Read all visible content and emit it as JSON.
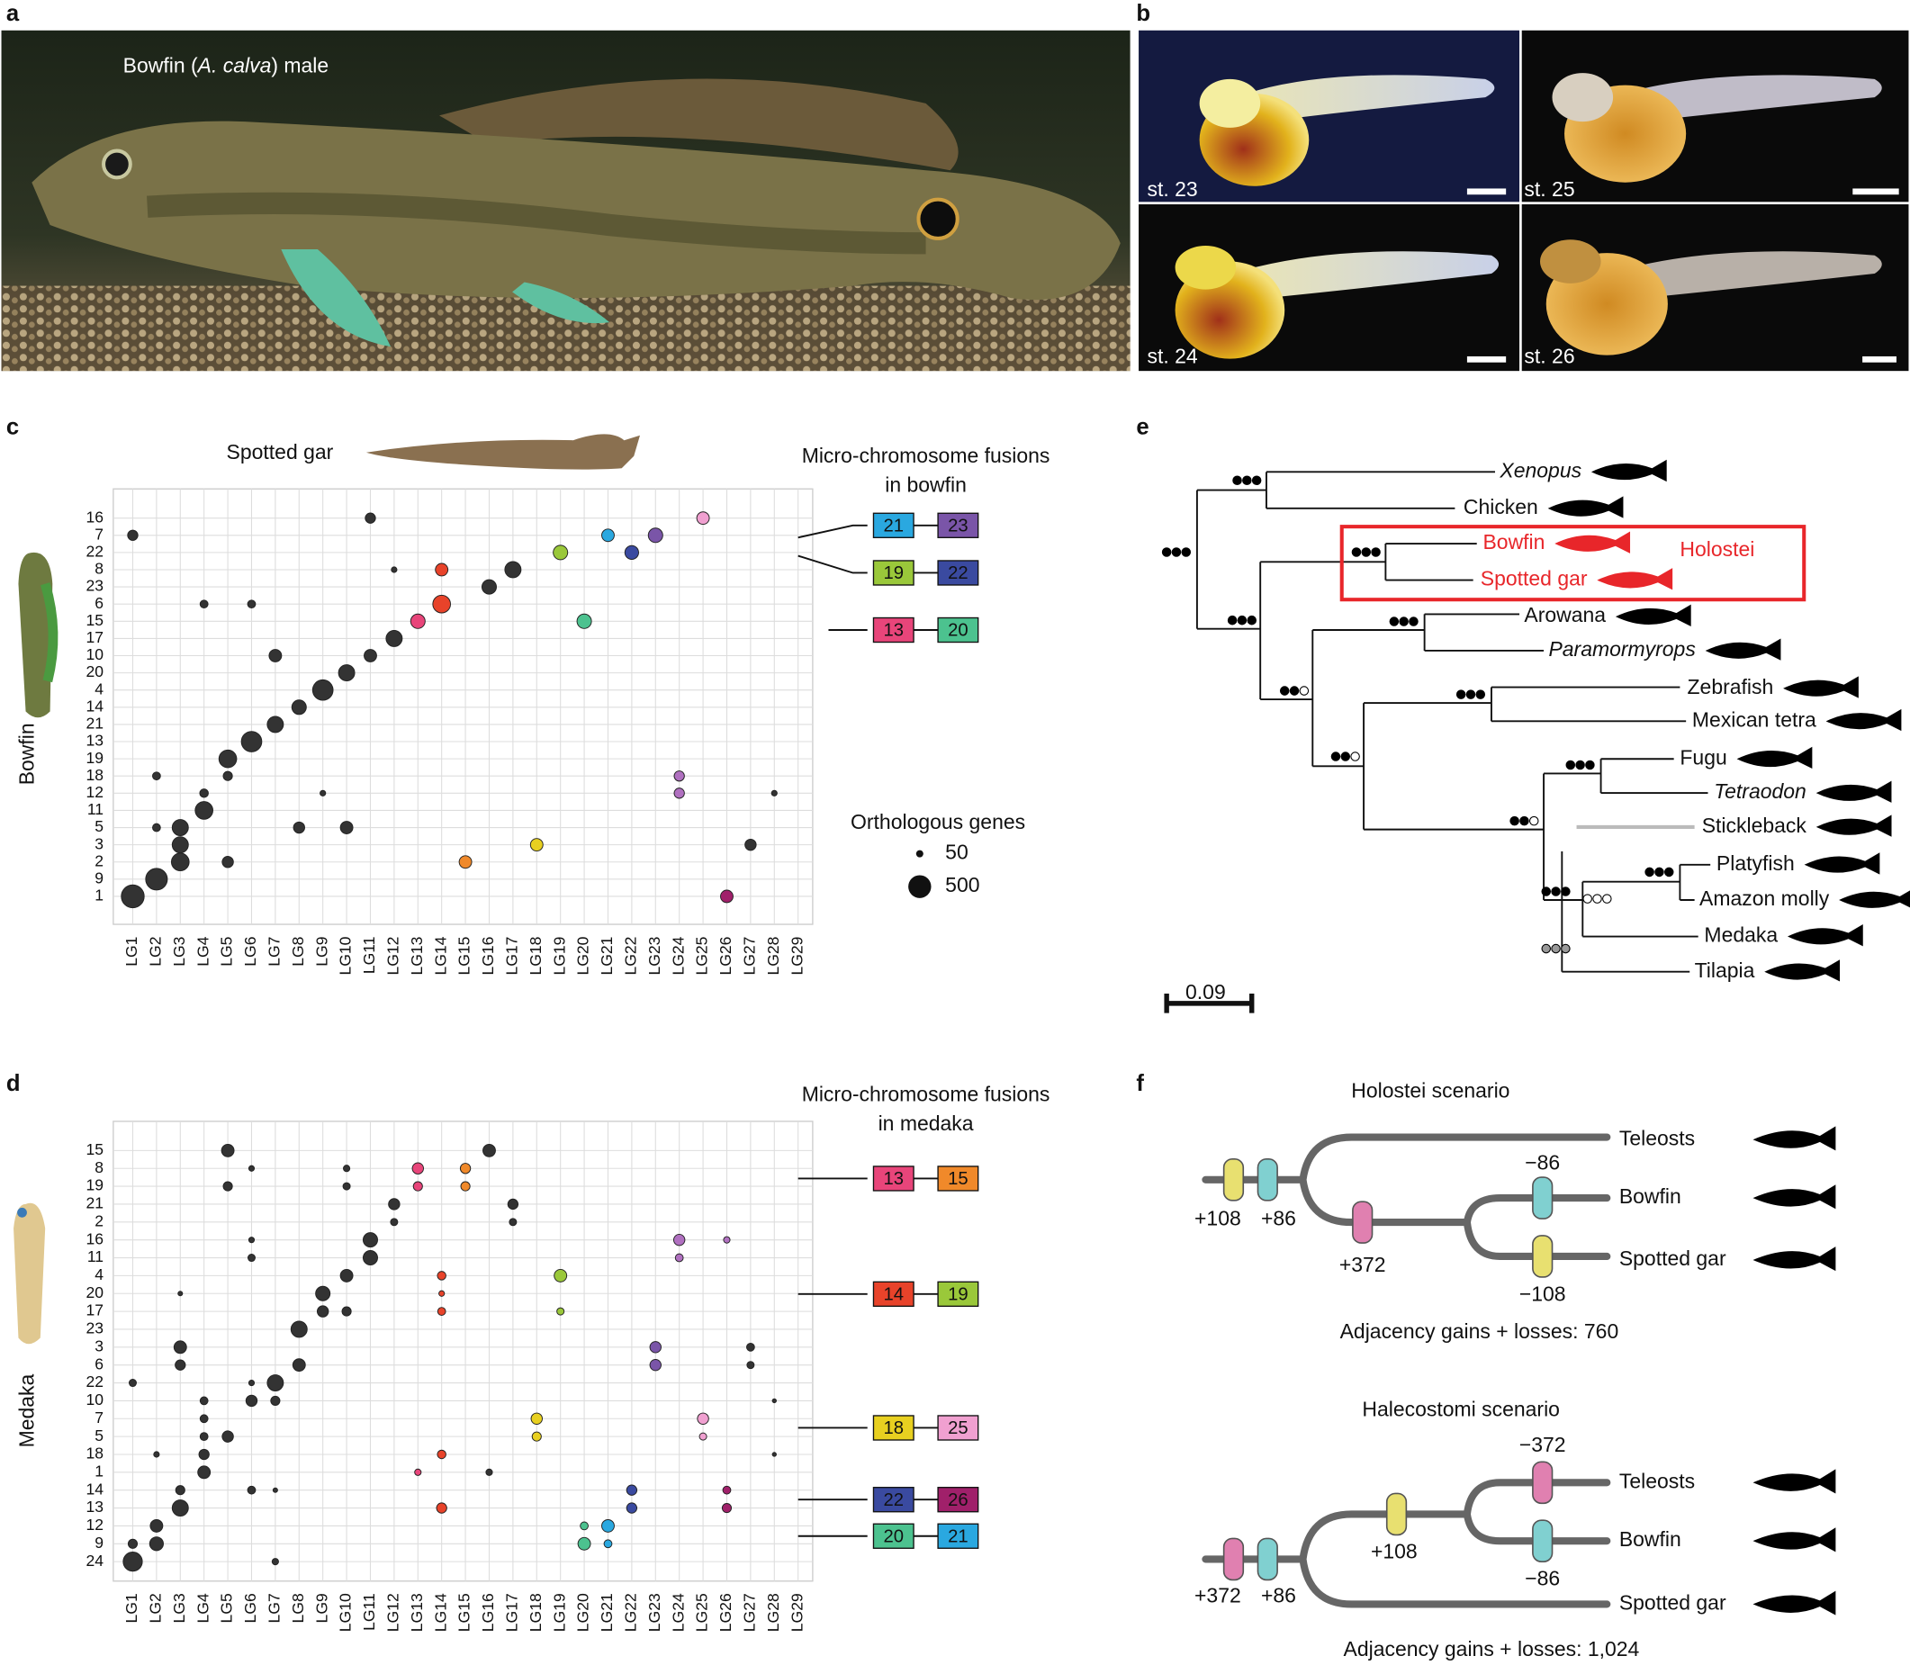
{
  "panel_labels": [
    "a",
    "b",
    "c",
    "d",
    "e",
    "f"
  ],
  "panel_a": {
    "caption": [
      "Bowfin (",
      "A. calva",
      ") male"
    ]
  },
  "panel_b": {
    "stages": [
      "st. 23",
      "st. 25",
      "st. 24",
      "st. 26"
    ]
  },
  "chart_data": [
    {
      "type": "dot_matrix",
      "title": "Spotted gar",
      "y_label": "Bowfin",
      "x_categories": [
        "LG1",
        "LG2",
        "LG3",
        "LG4",
        "LG5",
        "LG6",
        "LG7",
        "LG8",
        "LG9",
        "LG10",
        "LG11",
        "LG12",
        "LG13",
        "LG14",
        "LG15",
        "LG16",
        "LG17",
        "LG18",
        "LG19",
        "LG20",
        "LG21",
        "LG22",
        "LG23",
        "LG24",
        "LG25",
        "LG26",
        "LG27",
        "LG28",
        "LG29"
      ],
      "y_categories": [
        "16",
        "7",
        "22",
        "8",
        "23",
        "6",
        "15",
        "17",
        "10",
        "20",
        "4",
        "14",
        "21",
        "13",
        "19",
        "18",
        "12",
        "11",
        "5",
        "3",
        "2",
        "9",
        "1"
      ],
      "dot_color": "#333333",
      "points": [
        {
          "x": "LG1",
          "y": "7",
          "genes": 100
        },
        {
          "x": "LG1",
          "y": "1",
          "genes": 500
        },
        {
          "x": "LG2",
          "y": "18",
          "genes": 60
        },
        {
          "x": "LG2",
          "y": "5",
          "genes": 60
        },
        {
          "x": "LG2",
          "y": "9",
          "genes": 450
        },
        {
          "x": "LG3",
          "y": "5",
          "genes": 250
        },
        {
          "x": "LG3",
          "y": "3",
          "genes": 250
        },
        {
          "x": "LG3",
          "y": "2",
          "genes": 300
        },
        {
          "x": "LG4",
          "y": "6",
          "genes": 60
        },
        {
          "x": "LG4",
          "y": "12",
          "genes": 70
        },
        {
          "x": "LG4",
          "y": "11",
          "genes": 300
        },
        {
          "x": "LG5",
          "y": "19",
          "genes": 300
        },
        {
          "x": "LG5",
          "y": "18",
          "genes": 80
        },
        {
          "x": "LG5",
          "y": "2",
          "genes": 120
        },
        {
          "x": "LG6",
          "y": "6",
          "genes": 60
        },
        {
          "x": "LG6",
          "y": "13",
          "genes": 400
        },
        {
          "x": "LG7",
          "y": "10",
          "genes": 150
        },
        {
          "x": "LG7",
          "y": "21",
          "genes": 250
        },
        {
          "x": "LG8",
          "y": "14",
          "genes": 200
        },
        {
          "x": "LG8",
          "y": "5",
          "genes": 120
        },
        {
          "x": "LG9",
          "y": "4",
          "genes": 400
        },
        {
          "x": "LG9",
          "y": "12",
          "genes": 30
        },
        {
          "x": "LG10",
          "y": "20",
          "genes": 250
        },
        {
          "x": "LG10",
          "y": "5",
          "genes": 150
        },
        {
          "x": "LG11",
          "y": "16",
          "genes": 100
        },
        {
          "x": "LG11",
          "y": "10",
          "genes": 150
        },
        {
          "x": "LG12",
          "y": "8",
          "genes": 30
        },
        {
          "x": "LG12",
          "y": "17",
          "genes": 250
        },
        {
          "x": "LG13",
          "y": "15",
          "genes": 200,
          "color": "#e8457a"
        },
        {
          "x": "LG14",
          "y": "8",
          "genes": 150,
          "color": "#e8432a"
        },
        {
          "x": "LG14",
          "y": "6",
          "genes": 300,
          "color": "#e8432a"
        },
        {
          "x": "LG15",
          "y": "2",
          "genes": 150,
          "color": "#f0892a"
        },
        {
          "x": "LG16",
          "y": "23",
          "genes": 200
        },
        {
          "x": "LG17",
          "y": "8",
          "genes": 250
        },
        {
          "x": "LG18",
          "y": "3",
          "genes": 150,
          "color": "#e8d020"
        },
        {
          "x": "LG19",
          "y": "22",
          "genes": 200,
          "color": "#9ac83a"
        },
        {
          "x": "LG20",
          "y": "15",
          "genes": 200,
          "color": "#4cc28f"
        },
        {
          "x": "LG21",
          "y": "7",
          "genes": 150,
          "color": "#2aa8e0"
        },
        {
          "x": "LG22",
          "y": "22",
          "genes": 180,
          "color": "#3a4aa0"
        },
        {
          "x": "LG23",
          "y": "7",
          "genes": 200,
          "color": "#7a55a8"
        },
        {
          "x": "LG24",
          "y": "18",
          "genes": 100,
          "color": "#b070c0"
        },
        {
          "x": "LG24",
          "y": "12",
          "genes": 100,
          "color": "#b070c0"
        },
        {
          "x": "LG25",
          "y": "16",
          "genes": 150,
          "color": "#f0a0d0"
        },
        {
          "x": "LG26",
          "y": "1",
          "genes": 150,
          "color": "#a0206a"
        },
        {
          "x": "LG27",
          "y": "3",
          "genes": 120
        },
        {
          "x": "LG28",
          "y": "12",
          "genes": 30
        }
      ],
      "fusion_title": [
        "Micro-chromosome fusions",
        "in bowfin"
      ],
      "fusions": [
        {
          "left": "21",
          "right": "23",
          "left_color": "#2aa8e0",
          "right_color": "#7a55a8"
        },
        {
          "left": "19",
          "right": "22",
          "left_color": "#9ac83a",
          "right_color": "#3a4aa0"
        },
        {
          "left": "13",
          "right": "20",
          "left_color": "#e8457a",
          "right_color": "#4cc28f"
        }
      ],
      "size_legend": {
        "title": "Orthologous genes",
        "values": [
          50,
          500
        ]
      }
    },
    {
      "type": "dot_matrix",
      "y_label": "Medaka",
      "x_categories": [
        "LG1",
        "LG2",
        "LG3",
        "LG4",
        "LG5",
        "LG6",
        "LG7",
        "LG8",
        "LG9",
        "LG10",
        "LG11",
        "LG12",
        "LG13",
        "LG14",
        "LG15",
        "LG16",
        "LG17",
        "LG18",
        "LG19",
        "LG20",
        "LG21",
        "LG22",
        "LG23",
        "LG24",
        "LG25",
        "LG26",
        "LG27",
        "LG28",
        "LG29"
      ],
      "y_categories": [
        "15",
        "8",
        "19",
        "21",
        "2",
        "16",
        "11",
        "4",
        "20",
        "17",
        "23",
        "3",
        "6",
        "22",
        "10",
        "7",
        "5",
        "18",
        "1",
        "14",
        "13",
        "12",
        "9",
        "24"
      ],
      "dot_color": "#333333",
      "points": [
        {
          "x": "LG5",
          "y": "15",
          "genes": 150
        },
        {
          "x": "LG16",
          "y": "15",
          "genes": 150
        },
        {
          "x": "LG6",
          "y": "8",
          "genes": 30
        },
        {
          "x": "LG10",
          "y": "8",
          "genes": 40
        },
        {
          "x": "LG13",
          "y": "8",
          "genes": 120,
          "color": "#e8457a"
        },
        {
          "x": "LG15",
          "y": "8",
          "genes": 100,
          "color": "#f0892a"
        },
        {
          "x": "LG5",
          "y": "19",
          "genes": 80
        },
        {
          "x": "LG10",
          "y": "19",
          "genes": 50
        },
        {
          "x": "LG13",
          "y": "19",
          "genes": 80,
          "color": "#e8457a"
        },
        {
          "x": "LG15",
          "y": "19",
          "genes": 80,
          "color": "#f0892a"
        },
        {
          "x": "LG12",
          "y": "21",
          "genes": 120
        },
        {
          "x": "LG17",
          "y": "21",
          "genes": 100
        },
        {
          "x": "LG12",
          "y": "2",
          "genes": 50
        },
        {
          "x": "LG17",
          "y": "2",
          "genes": 50
        },
        {
          "x": "LG6",
          "y": "16",
          "genes": 30
        },
        {
          "x": "LG11",
          "y": "16",
          "genes": 200
        },
        {
          "x": "LG24",
          "y": "16",
          "genes": 120,
          "color": "#b070c0"
        },
        {
          "x": "LG26",
          "y": "16",
          "genes": 40,
          "color": "#b070c0"
        },
        {
          "x": "LG6",
          "y": "11",
          "genes": 50
        },
        {
          "x": "LG11",
          "y": "11",
          "genes": 200
        },
        {
          "x": "LG24",
          "y": "11",
          "genes": 60,
          "color": "#b070c0"
        },
        {
          "x": "LG10",
          "y": "4",
          "genes": 150
        },
        {
          "x": "LG14",
          "y": "4",
          "genes": 70,
          "color": "#e8432a"
        },
        {
          "x": "LG19",
          "y": "4",
          "genes": 150,
          "color": "#9ac83a"
        },
        {
          "x": "LG3",
          "y": "20",
          "genes": 20
        },
        {
          "x": "LG9",
          "y": "20",
          "genes": 200
        },
        {
          "x": "LG14",
          "y": "20",
          "genes": 30,
          "color": "#e8432a"
        },
        {
          "x": "LG9",
          "y": "17",
          "genes": 120
        },
        {
          "x": "LG10",
          "y": "17",
          "genes": 80
        },
        {
          "x": "LG14",
          "y": "17",
          "genes": 60,
          "color": "#e8432a"
        },
        {
          "x": "LG19",
          "y": "17",
          "genes": 50,
          "color": "#9ac83a"
        },
        {
          "x": "LG8",
          "y": "23",
          "genes": 250
        },
        {
          "x": "LG3",
          "y": "3",
          "genes": 150
        },
        {
          "x": "LG23",
          "y": "3",
          "genes": 120,
          "color": "#7a55a8"
        },
        {
          "x": "LG27",
          "y": "3",
          "genes": 60
        },
        {
          "x": "LG3",
          "y": "6",
          "genes": 100
        },
        {
          "x": "LG8",
          "y": "6",
          "genes": 150
        },
        {
          "x": "LG23",
          "y": "6",
          "genes": 120,
          "color": "#7a55a8"
        },
        {
          "x": "LG27",
          "y": "6",
          "genes": 50
        },
        {
          "x": "LG1",
          "y": "22",
          "genes": 50
        },
        {
          "x": "LG6",
          "y": "22",
          "genes": 30
        },
        {
          "x": "LG7",
          "y": "22",
          "genes": 250
        },
        {
          "x": "LG4",
          "y": "10",
          "genes": 60
        },
        {
          "x": "LG6",
          "y": "10",
          "genes": 120
        },
        {
          "x": "LG7",
          "y": "10",
          "genes": 80
        },
        {
          "x": "LG28",
          "y": "10",
          "genes": 15
        },
        {
          "x": "LG4",
          "y": "7",
          "genes": 60
        },
        {
          "x": "LG18",
          "y": "7",
          "genes": 120,
          "color": "#e8d020"
        },
        {
          "x": "LG25",
          "y": "7",
          "genes": 120,
          "color": "#f0a0d0"
        },
        {
          "x": "LG4",
          "y": "5",
          "genes": 60
        },
        {
          "x": "LG5",
          "y": "5",
          "genes": 120
        },
        {
          "x": "LG18",
          "y": "5",
          "genes": 80,
          "color": "#e8d020"
        },
        {
          "x": "LG25",
          "y": "5",
          "genes": 50,
          "color": "#f0a0d0"
        },
        {
          "x": "LG2",
          "y": "18",
          "genes": 30
        },
        {
          "x": "LG4",
          "y": "18",
          "genes": 100
        },
        {
          "x": "LG14",
          "y": "18",
          "genes": 70,
          "color": "#e8432a"
        },
        {
          "x": "LG28",
          "y": "18",
          "genes": 15
        },
        {
          "x": "LG4",
          "y": "1",
          "genes": 150
        },
        {
          "x": "LG13",
          "y": "1",
          "genes": 40,
          "color": "#e8457a"
        },
        {
          "x": "LG16",
          "y": "1",
          "genes": 40
        },
        {
          "x": "LG3",
          "y": "14",
          "genes": 80
        },
        {
          "x": "LG6",
          "y": "14",
          "genes": 60
        },
        {
          "x": "LG7",
          "y": "14",
          "genes": 20
        },
        {
          "x": "LG22",
          "y": "14",
          "genes": 100,
          "color": "#3a4aa0"
        },
        {
          "x": "LG26",
          "y": "14",
          "genes": 60,
          "color": "#a0206a"
        },
        {
          "x": "LG3",
          "y": "13",
          "genes": 250
        },
        {
          "x": "LG14",
          "y": "13",
          "genes": 100,
          "color": "#e8432a"
        },
        {
          "x": "LG22",
          "y": "13",
          "genes": 100,
          "color": "#3a4aa0"
        },
        {
          "x": "LG26",
          "y": "13",
          "genes": 80,
          "color": "#a0206a"
        },
        {
          "x": "LG2",
          "y": "12",
          "genes": 150
        },
        {
          "x": "LG20",
          "y": "12",
          "genes": 60,
          "color": "#4cc28f"
        },
        {
          "x": "LG21",
          "y": "12",
          "genes": 150,
          "color": "#2aa8e0"
        },
        {
          "x": "LG1",
          "y": "9",
          "genes": 80
        },
        {
          "x": "LG2",
          "y": "9",
          "genes": 180
        },
        {
          "x": "LG20",
          "y": "9",
          "genes": 150,
          "color": "#4cc28f"
        },
        {
          "x": "LG21",
          "y": "9",
          "genes": 60,
          "color": "#2aa8e0"
        },
        {
          "x": "LG1",
          "y": "24",
          "genes": 350
        },
        {
          "x": "LG7",
          "y": "24",
          "genes": 40
        }
      ],
      "fusion_title": [
        "Micro-chromosome fusions",
        "in medaka"
      ],
      "fusions": [
        {
          "left": "13",
          "right": "15",
          "left_color": "#e8457a",
          "right_color": "#f0892a"
        },
        {
          "left": "14",
          "right": "19",
          "left_color": "#e8432a",
          "right_color": "#9ac83a"
        },
        {
          "left": "18",
          "right": "25",
          "left_color": "#e8d020",
          "right_color": "#f0a0d0"
        },
        {
          "left": "22",
          "right": "26",
          "left_color": "#3a4aa0",
          "right_color": "#a0206a"
        },
        {
          "left": "20",
          "right": "21",
          "left_color": "#4cc28f",
          "right_color": "#2aa8e0"
        }
      ]
    }
  ],
  "panel_e": {
    "taxa": [
      {
        "name": "Xenopus",
        "italic": true
      },
      {
        "name": "Chicken"
      },
      {
        "name": "Bowfin",
        "highlight": true
      },
      {
        "name": "Spotted gar",
        "highlight": true
      },
      {
        "name": "Arowana"
      },
      {
        "name": "Paramormyrops",
        "italic": true
      },
      {
        "name": "Zebrafish"
      },
      {
        "name": "Mexican tetra"
      },
      {
        "name": "Fugu"
      },
      {
        "name": "Tetraodon",
        "italic": true
      },
      {
        "name": "Stickleback"
      },
      {
        "name": "Platyfish"
      },
      {
        "name": "Amazon molly"
      },
      {
        "name": "Medaka"
      },
      {
        "name": "Tilapia"
      }
    ],
    "highlight_color": "#e8262a",
    "clade_label": "Holostei",
    "scale_bar": 0.09
  },
  "panel_f": {
    "scenarios": [
      {
        "title": "Holostei scenario",
        "tips": [
          "Teleosts",
          "Bowfin",
          "Spotted gar"
        ],
        "events": [
          "+108",
          "+86",
          "+372",
          "−86",
          "−108"
        ],
        "total": "Adjacency gains + losses: 760"
      },
      {
        "title": "Halecostomi scenario",
        "tips": [
          "Teleosts",
          "Bowfin",
          "Spotted gar"
        ],
        "events": [
          "+372",
          "+86",
          "+108",
          "−372",
          "−86"
        ],
        "total": "Adjacency gains + losses: 1,024"
      }
    ]
  }
}
